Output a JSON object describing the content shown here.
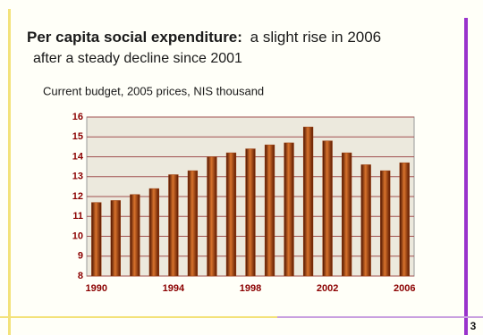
{
  "chart_data": {
    "type": "bar",
    "title_lead": "Per capita social expenditure:",
    "title": "a slight rise in 2006",
    "title_line2": "after a steady decline since 2001",
    "subtitle": "Current budget, 2005 prices, NIS thousand",
    "categories": [
      "1990",
      null,
      null,
      null,
      "1994",
      null,
      null,
      null,
      "1998",
      null,
      null,
      null,
      "2002",
      null,
      null,
      null,
      "2006"
    ],
    "values": [
      11.7,
      11.8,
      12.1,
      12.4,
      13.1,
      13.3,
      14.0,
      14.2,
      14.4,
      14.6,
      14.7,
      15.5,
      14.8,
      14.2,
      13.6,
      13.3,
      13.7
    ],
    "color": "#9a3a0a",
    "ylim": [
      8,
      16
    ],
    "yticks": [
      8,
      9,
      10,
      11,
      12,
      13,
      14,
      15,
      16
    ],
    "grid": true
  },
  "page_number": "3"
}
